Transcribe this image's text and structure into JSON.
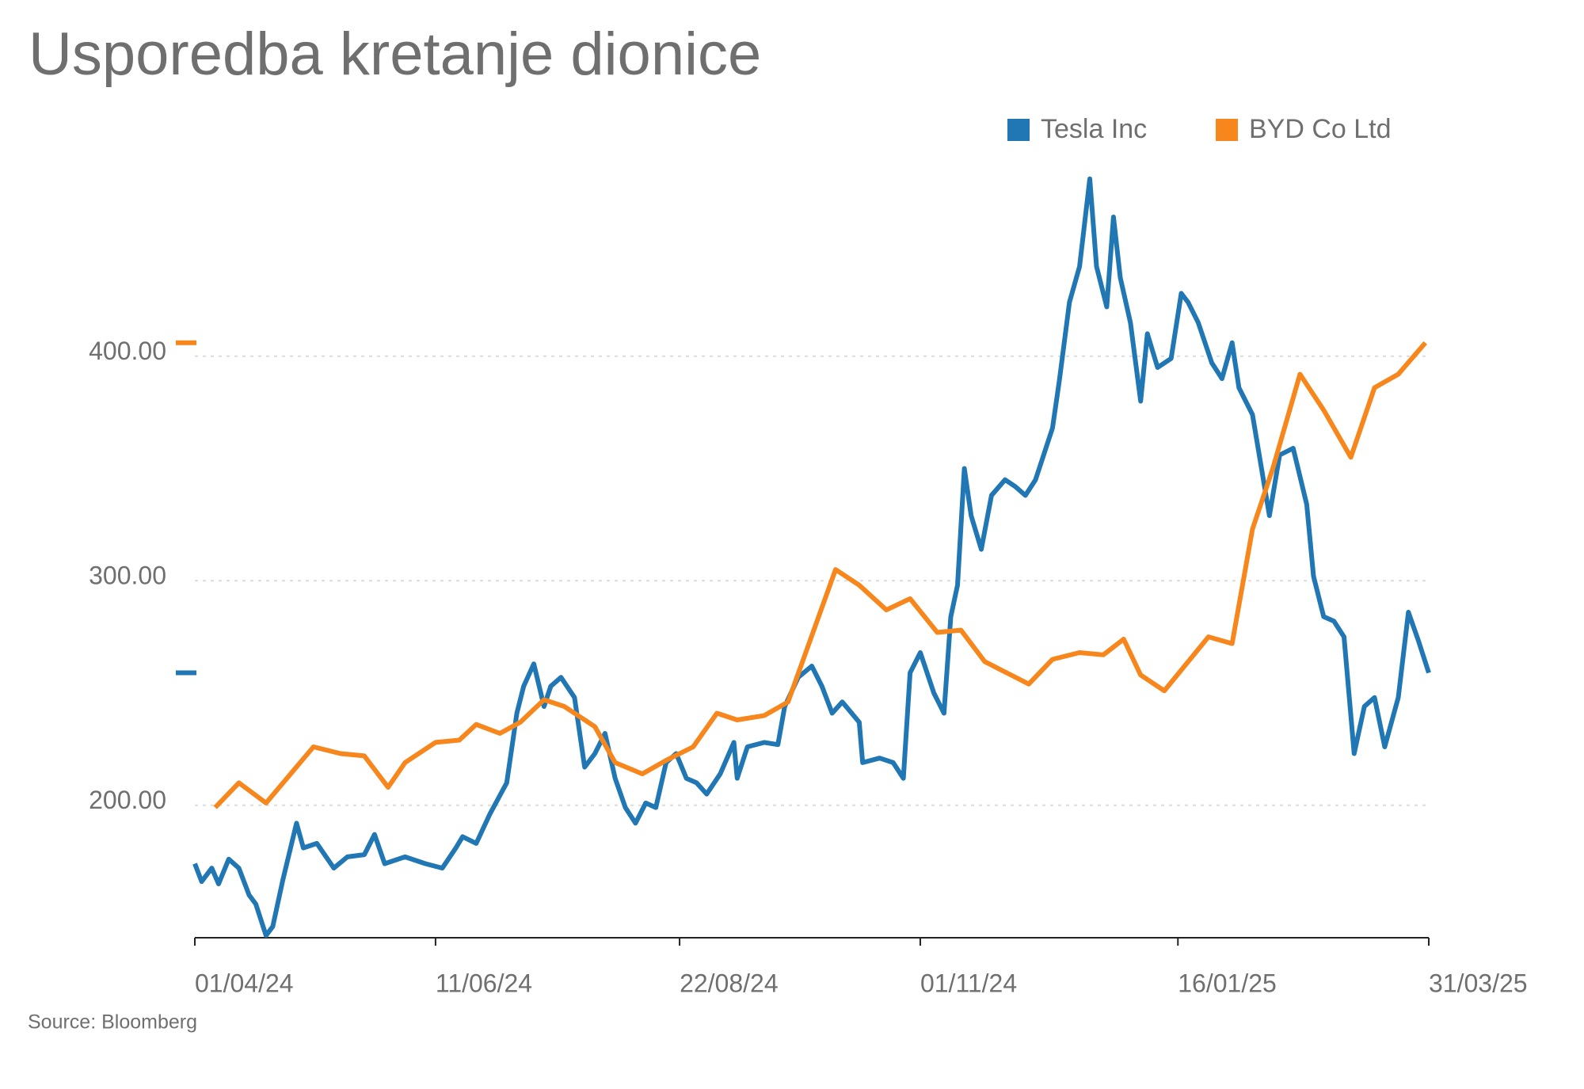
{
  "chart_data": {
    "type": "line",
    "title": "Usporedba kretanje dionice",
    "source": "Source: Bloomberg",
    "xlim": [
      "2024-04-01",
      "2025-03-31"
    ],
    "xticks": [
      {
        "value": "2024-04-01",
        "label": "01/04/24"
      },
      {
        "value": "2024-06-11",
        "label": "11/06/24"
      },
      {
        "value": "2024-08-22",
        "label": "22/08/24"
      },
      {
        "value": "2024-11-01",
        "label": "01/11/24"
      },
      {
        "value": "2025-01-16",
        "label": "16/01/25"
      },
      {
        "value": "2025-03-31",
        "label": "31/03/25"
      }
    ],
    "ylim": [
      141,
      480
    ],
    "yticks": [
      {
        "value": 200,
        "label": "200.00"
      },
      {
        "value": 300,
        "label": "300.00"
      },
      {
        "value": 400,
        "label": "400.00"
      }
    ],
    "grid": true,
    "legend": "top-right",
    "series": [
      {
        "name": "Tesla Inc",
        "color": "#2077b4",
        "x": [
          "2024-04-01",
          "2024-04-03",
          "2024-04-06",
          "2024-04-08",
          "2024-04-11",
          "2024-04-14",
          "2024-04-17",
          "2024-04-19",
          "2024-04-22",
          "2024-04-24",
          "2024-04-27",
          "2024-05-01",
          "2024-05-03",
          "2024-05-07",
          "2024-05-12",
          "2024-05-16",
          "2024-05-21",
          "2024-05-24",
          "2024-05-27",
          "2024-06-02",
          "2024-06-08",
          "2024-06-13",
          "2024-06-17",
          "2024-06-19",
          "2024-06-23",
          "2024-06-27",
          "2024-07-02",
          "2024-07-05",
          "2024-07-07",
          "2024-07-10",
          "2024-07-13",
          "2024-07-15",
          "2024-07-18",
          "2024-07-22",
          "2024-07-25",
          "2024-07-28",
          "2024-07-31",
          "2024-08-03",
          "2024-08-06",
          "2024-08-09",
          "2024-08-12",
          "2024-08-15",
          "2024-08-18",
          "2024-08-21",
          "2024-08-24",
          "2024-08-27",
          "2024-08-30",
          "2024-09-03",
          "2024-09-07",
          "2024-09-08",
          "2024-09-11",
          "2024-09-16",
          "2024-09-20",
          "2024-09-22",
          "2024-09-26",
          "2024-09-30",
          "2024-10-03",
          "2024-10-06",
          "2024-10-09",
          "2024-10-14",
          "2024-10-15",
          "2024-10-20",
          "2024-10-24",
          "2024-10-27",
          "2024-10-29",
          "2024-11-01",
          "2024-11-05",
          "2024-11-08",
          "2024-11-10",
          "2024-11-12",
          "2024-11-14",
          "2024-11-16",
          "2024-11-19",
          "2024-11-22",
          "2024-11-26",
          "2024-11-29",
          "2024-12-02",
          "2024-12-05",
          "2024-12-10",
          "2024-12-12",
          "2024-12-15",
          "2024-12-18",
          "2024-12-21",
          "2024-12-23",
          "2024-12-26",
          "2024-12-28",
          "2024-12-30",
          "2025-01-02",
          "2025-01-05",
          "2025-01-07",
          "2025-01-10",
          "2025-01-14",
          "2025-01-17",
          "2025-01-19",
          "2025-01-22",
          "2025-01-26",
          "2025-01-29",
          "2025-02-01",
          "2025-02-03",
          "2025-02-07",
          "2025-02-12",
          "2025-02-15",
          "2025-02-19",
          "2025-02-23",
          "2025-02-25",
          "2025-02-28",
          "2025-03-03",
          "2025-03-06",
          "2025-03-09",
          "2025-03-12",
          "2025-03-15",
          "2025-03-18",
          "2025-03-22",
          "2025-03-25",
          "2025-03-28",
          "2025-03-31"
        ],
        "values": [
          174,
          166,
          172,
          165,
          176,
          172,
          160,
          156,
          142,
          146,
          167,
          192,
          181,
          183,
          172,
          177,
          178,
          187,
          174,
          177,
          174,
          172,
          181,
          186,
          183,
          196,
          210,
          241,
          253,
          263,
          244,
          253,
          257,
          248,
          217,
          223,
          232,
          212,
          199,
          192,
          201,
          199,
          219,
          223,
          212,
          210,
          205,
          214,
          228,
          212,
          226,
          228,
          227,
          244,
          257,
          262,
          253,
          241,
          246,
          237,
          219,
          221,
          219,
          212,
          259,
          268,
          250,
          241,
          284,
          298,
          350,
          329,
          314,
          338,
          345,
          342,
          338,
          345,
          368,
          389,
          424,
          440,
          479,
          440,
          422,
          462,
          435,
          415,
          380,
          410,
          395,
          399,
          428,
          424,
          415,
          397,
          390,
          406,
          386,
          374,
          329,
          356,
          359,
          334,
          302,
          284,
          282,
          275,
          223,
          244,
          248,
          226,
          248,
          286,
          273,
          259
        ]
      },
      {
        "name": "BYD Co Ltd",
        "color": "#f7861c",
        "x": [
          "2024-04-07",
          "2024-04-14",
          "2024-04-22",
          "2024-05-06",
          "2024-05-14",
          "2024-05-21",
          "2024-05-28",
          "2024-06-02",
          "2024-06-11",
          "2024-06-18",
          "2024-06-23",
          "2024-06-30",
          "2024-07-06",
          "2024-07-13",
          "2024-07-19",
          "2024-07-28",
          "2024-08-03",
          "2024-08-11",
          "2024-08-18",
          "2024-08-26",
          "2024-09-02",
          "2024-09-08",
          "2024-09-16",
          "2024-09-23",
          "2024-10-07",
          "2024-10-14",
          "2024-10-22",
          "2024-10-29",
          "2024-11-06",
          "2024-11-13",
          "2024-11-20",
          "2024-12-03",
          "2024-12-10",
          "2024-12-18",
          "2024-12-25",
          "2024-12-31",
          "2025-01-05",
          "2025-01-12",
          "2025-01-25",
          "2025-02-01",
          "2025-02-07",
          "2025-02-13",
          "2025-02-21",
          "2025-02-28",
          "2025-03-08",
          "2025-03-15",
          "2025-03-22",
          "2025-03-30"
        ],
        "values": [
          199,
          210,
          201,
          226,
          223,
          222,
          208,
          219,
          228,
          229,
          236,
          232,
          237,
          247,
          244,
          235,
          219,
          214,
          220,
          226,
          241,
          238,
          240,
          246,
          305,
          298,
          287,
          292,
          277,
          278,
          264,
          254,
          265,
          268,
          267,
          274,
          258,
          251,
          275,
          272,
          323,
          350,
          392,
          376,
          355,
          386,
          392,
          406
        ]
      }
    ]
  }
}
